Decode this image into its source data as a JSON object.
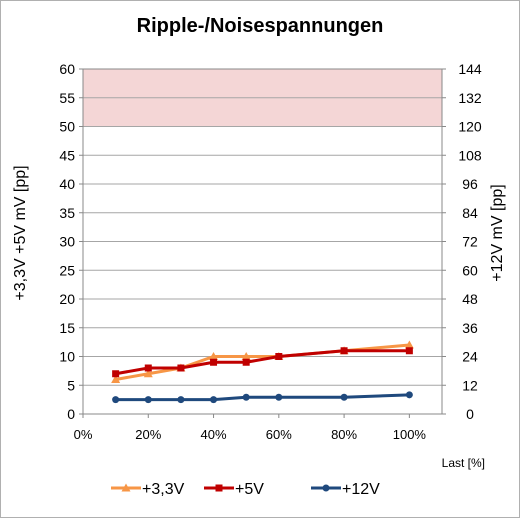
{
  "chart_data": {
    "type": "line",
    "title": "Ripple-/Noisespannungen",
    "xlabel": "Last [%]",
    "ylabel_left": "+3,3V +5V     mV [pp]",
    "ylabel_right": "+12V     mV [pp]",
    "x": [
      10,
      20,
      30,
      40,
      50,
      60,
      80,
      100
    ],
    "xlim": [
      0,
      110
    ],
    "xticks": [
      "0%",
      "20%",
      "40%",
      "60%",
      "80%",
      "100%"
    ],
    "xtick_values": [
      0,
      20,
      40,
      60,
      80,
      100
    ],
    "ylim_left": [
      0,
      60
    ],
    "ylim_right": [
      0,
      144
    ],
    "yticks_left": [
      "0",
      "5",
      "10",
      "15",
      "20",
      "25",
      "30",
      "35",
      "40",
      "45",
      "50",
      "55",
      "60"
    ],
    "yticks_right": [
      "0",
      "12",
      "24",
      "36",
      "48",
      "60",
      "72",
      "84",
      "96",
      "108",
      "120",
      "132",
      "144"
    ],
    "limit_band_left": [
      50,
      60
    ],
    "grid": true,
    "legend": "bottom",
    "series": [
      {
        "name": "+3,3V",
        "axis": "left",
        "color": "#f79646",
        "marker": "triangle",
        "values": [
          6,
          7,
          8,
          10,
          10,
          10,
          11,
          12
        ]
      },
      {
        "name": "+5V",
        "axis": "left",
        "color": "#c00000",
        "marker": "square",
        "values": [
          7,
          8,
          8,
          9,
          9,
          10,
          11,
          11
        ]
      },
      {
        "name": "+12V",
        "axis": "right",
        "color": "#1f497d",
        "marker": "circle",
        "values": [
          6,
          6,
          6,
          6,
          7,
          7,
          7,
          8
        ]
      }
    ]
  }
}
